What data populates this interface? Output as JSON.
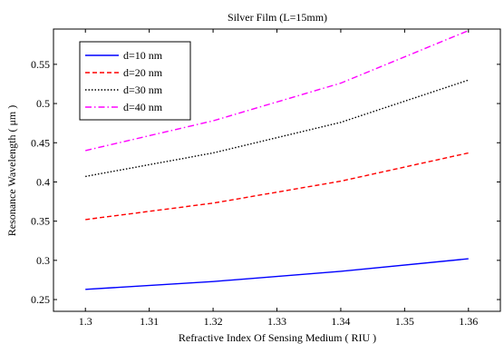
{
  "chart_data": {
    "type": "line",
    "title": "Silver Film  (L=15mm)",
    "xlabel": "Refractive Index Of Sensing Medium ( RIU )",
    "ylabel": "Resonance Wavelength ( μm )",
    "xlim": [
      1.295,
      1.365
    ],
    "ylim": [
      0.235,
      0.595
    ],
    "xticks": [
      1.3,
      1.31,
      1.32,
      1.33,
      1.34,
      1.35,
      1.36
    ],
    "xtick_labels": [
      "1.3",
      "1.31",
      "1.32",
      "1.33",
      "1.34",
      "1.35",
      "1.36"
    ],
    "yticks": [
      0.25,
      0.3,
      0.35,
      0.4,
      0.45,
      0.5,
      0.55
    ],
    "ytick_labels": [
      "0.25",
      "0.3",
      "0.35",
      "0.4",
      "0.45",
      "0.5",
      "0.55"
    ],
    "grid": false,
    "legend_position": "top-left",
    "x": [
      1.3,
      1.32,
      1.34,
      1.36
    ],
    "series": [
      {
        "name": "d=10 nm",
        "color": "#0000ff",
        "dash": "solid",
        "values": [
          0.263,
          0.273,
          0.286,
          0.302
        ]
      },
      {
        "name": "d=20 nm",
        "color": "#ff0000",
        "dash": "dashed",
        "values": [
          0.352,
          0.373,
          0.401,
          0.437
        ]
      },
      {
        "name": "d=30 nm",
        "color": "#000000",
        "dash": "dotted",
        "values": [
          0.407,
          0.437,
          0.476,
          0.53
        ]
      },
      {
        "name": "d=40 nm",
        "color": "#ff00ff",
        "dash": "dashdot",
        "values": [
          0.44,
          0.478,
          0.526,
          0.593
        ]
      }
    ]
  }
}
